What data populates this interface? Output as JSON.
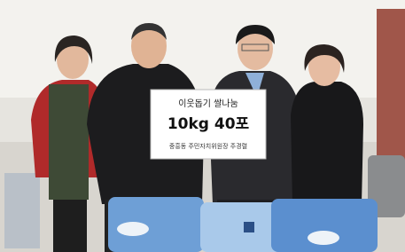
{
  "sign": {
    "line1": "이웃돕기 쌀나눔",
    "line2": "10kg 40포",
    "line3": "중흥동 주민자치위원장 주경렬"
  }
}
